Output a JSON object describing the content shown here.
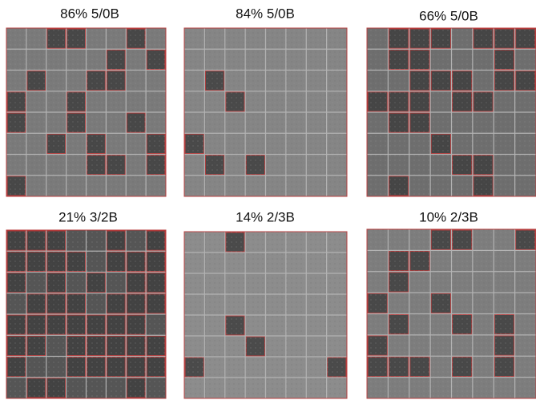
{
  "panels": [
    {
      "label": "86% 5/0B"
    },
    {
      "label": "84% 5/0B"
    },
    {
      "label": "66% 5/0B"
    },
    {
      "label": "21% 3/2B"
    },
    {
      "label": "14% 2/3B"
    },
    {
      "label": "10% 2/3B"
    }
  ]
}
